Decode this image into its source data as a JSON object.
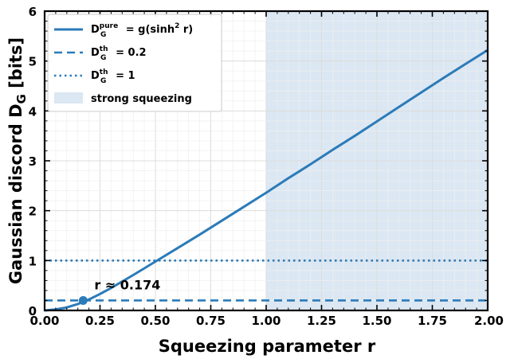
{
  "chart_data": {
    "type": "line",
    "xlabel": "Squeezing parameter r",
    "ylabel": "Gaussian discord D",
    "ylabel_sub": "G",
    "ylabel_unit": "[bits]",
    "xlim": [
      0.0,
      2.0
    ],
    "ylim": [
      0,
      6
    ],
    "x_ticks": [
      "0.00",
      "0.25",
      "0.50",
      "0.75",
      "1.00",
      "1.25",
      "1.50",
      "1.75",
      "2.00"
    ],
    "y_ticks": [
      "0",
      "1",
      "2",
      "3",
      "4",
      "5",
      "6"
    ],
    "grid": true,
    "legend_position": "top-left",
    "shaded_region": {
      "x_start": 1.0,
      "x_end": 2.0,
      "label": "strong squeezing",
      "color": "#dbe7f2"
    },
    "series": [
      {
        "name": "D_G^pure = g(sinh^2 r)",
        "legend": {
          "main": "D",
          "sub": "G",
          "sup": "pure",
          "rest": " = g(sinh",
          "sup2": "2",
          "rest2": " r)"
        },
        "style": "solid",
        "color": "#2b7bb9",
        "x": [
          0.0,
          0.05,
          0.1,
          0.15,
          0.2,
          0.25,
          0.3,
          0.4,
          0.5,
          0.6,
          0.7,
          0.8,
          0.9,
          1.0,
          1.1,
          1.2,
          1.3,
          1.4,
          1.5,
          1.6,
          1.7,
          1.8,
          1.9,
          2.0
        ],
        "y": [
          0.0,
          0.02,
          0.06,
          0.13,
          0.22,
          0.33,
          0.45,
          0.71,
          0.98,
          1.25,
          1.52,
          1.8,
          2.08,
          2.36,
          2.65,
          2.93,
          3.22,
          3.5,
          3.79,
          4.08,
          4.37,
          4.66,
          4.94,
          5.22
        ]
      },
      {
        "name": "D_G^th = 0.2",
        "legend": {
          "main": "D",
          "sub": "G",
          "sup": "th",
          "rest": " = 0.2"
        },
        "style": "dashed",
        "color": "#2b7bb9",
        "y_const": 0.2
      },
      {
        "name": "D_G^th = 1",
        "legend": {
          "main": "D",
          "sub": "G",
          "sup": "th",
          "rest": " = 1"
        },
        "style": "dotted",
        "color": "#2b7bb9",
        "y_const": 1
      }
    ],
    "marker": {
      "x": 0.174,
      "y": 0.2,
      "label": "r ≈ 0.174"
    }
  }
}
